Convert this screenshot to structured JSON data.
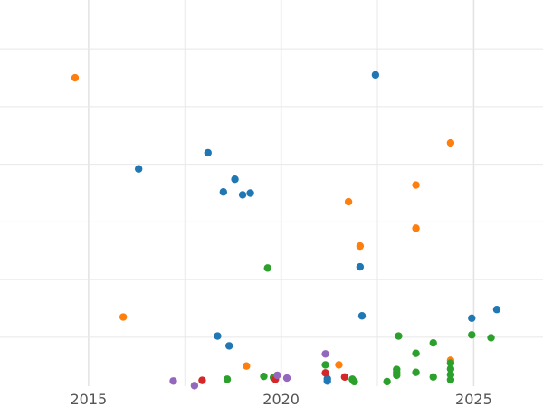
{
  "chart_data": {
    "type": "scatter",
    "title": "",
    "xlabel": "",
    "ylabel": "",
    "xlim": [
      2012.7,
      2026.8
    ],
    "ylim": [
      -0.1,
      6.6
    ],
    "grid": true,
    "x_ticks": [
      2015,
      2020,
      2025
    ],
    "x_tick_labels": [
      "2015",
      "2020",
      "2025"
    ],
    "y_gridlines": [
      0.75,
      1.75,
      2.75,
      3.75,
      4.75,
      5.75
    ],
    "series": [
      {
        "color": "#1f77b4",
        "points": [
          {
            "x": 2022.45,
            "y": 5.3
          },
          {
            "x": 2018.1,
            "y": 3.95
          },
          {
            "x": 2016.3,
            "y": 3.67
          },
          {
            "x": 2018.8,
            "y": 3.49
          },
          {
            "x": 2018.5,
            "y": 3.27
          },
          {
            "x": 2019.0,
            "y": 3.22
          },
          {
            "x": 2019.2,
            "y": 3.25
          },
          {
            "x": 2022.05,
            "y": 1.97
          },
          {
            "x": 2022.1,
            "y": 1.12
          },
          {
            "x": 2024.95,
            "y": 1.08
          },
          {
            "x": 2025.6,
            "y": 1.23
          },
          {
            "x": 2018.35,
            "y": 0.77
          },
          {
            "x": 2018.65,
            "y": 0.6
          },
          {
            "x": 2021.2,
            "y": 0.03
          },
          {
            "x": 2021.2,
            "y": -0.01
          }
        ]
      },
      {
        "color": "#ff7f0e",
        "points": [
          {
            "x": 2014.65,
            "y": 5.25
          },
          {
            "x": 2024.4,
            "y": 4.12
          },
          {
            "x": 2023.5,
            "y": 3.39
          },
          {
            "x": 2021.75,
            "y": 3.1
          },
          {
            "x": 2023.5,
            "y": 2.64
          },
          {
            "x": 2022.05,
            "y": 2.33
          },
          {
            "x": 2015.9,
            "y": 1.1
          },
          {
            "x": 2019.1,
            "y": 0.25
          },
          {
            "x": 2021.5,
            "y": 0.27
          },
          {
            "x": 2024.4,
            "y": 0.35
          }
        ]
      },
      {
        "color": "#2ca02c",
        "points": [
          {
            "x": 2019.65,
            "y": 1.95
          },
          {
            "x": 2023.05,
            "y": 0.77
          },
          {
            "x": 2023.95,
            "y": 0.65
          },
          {
            "x": 2024.95,
            "y": 0.79
          },
          {
            "x": 2025.45,
            "y": 0.74
          },
          {
            "x": 2023.5,
            "y": 0.47
          },
          {
            "x": 2021.15,
            "y": 0.27
          },
          {
            "x": 2023.0,
            "y": 0.19
          },
          {
            "x": 2023.0,
            "y": 0.14
          },
          {
            "x": 2023.0,
            "y": 0.09
          },
          {
            "x": 2023.5,
            "y": 0.14
          },
          {
            "x": 2024.4,
            "y": 0.3
          },
          {
            "x": 2024.4,
            "y": 0.2
          },
          {
            "x": 2024.4,
            "y": 0.1
          },
          {
            "x": 2024.4,
            "y": 0.01
          },
          {
            "x": 2023.95,
            "y": 0.06
          },
          {
            "x": 2022.75,
            "y": -0.02
          },
          {
            "x": 2021.85,
            "y": 0.02
          },
          {
            "x": 2021.9,
            "y": -0.02
          },
          {
            "x": 2019.55,
            "y": 0.07
          },
          {
            "x": 2018.6,
            "y": 0.02
          },
          {
            "x": 2019.8,
            "y": 0.05
          }
        ]
      },
      {
        "color": "#d62728",
        "points": [
          {
            "x": 2017.95,
            "y": 0.0
          },
          {
            "x": 2019.85,
            "y": 0.02
          },
          {
            "x": 2021.15,
            "y": 0.13
          },
          {
            "x": 2021.65,
            "y": 0.06
          }
        ]
      },
      {
        "color": "#9467bd",
        "points": [
          {
            "x": 2017.2,
            "y": -0.01
          },
          {
            "x": 2017.75,
            "y": -0.09
          },
          {
            "x": 2019.9,
            "y": 0.09
          },
          {
            "x": 2020.15,
            "y": 0.04
          },
          {
            "x": 2021.15,
            "y": 0.46
          }
        ]
      }
    ]
  }
}
